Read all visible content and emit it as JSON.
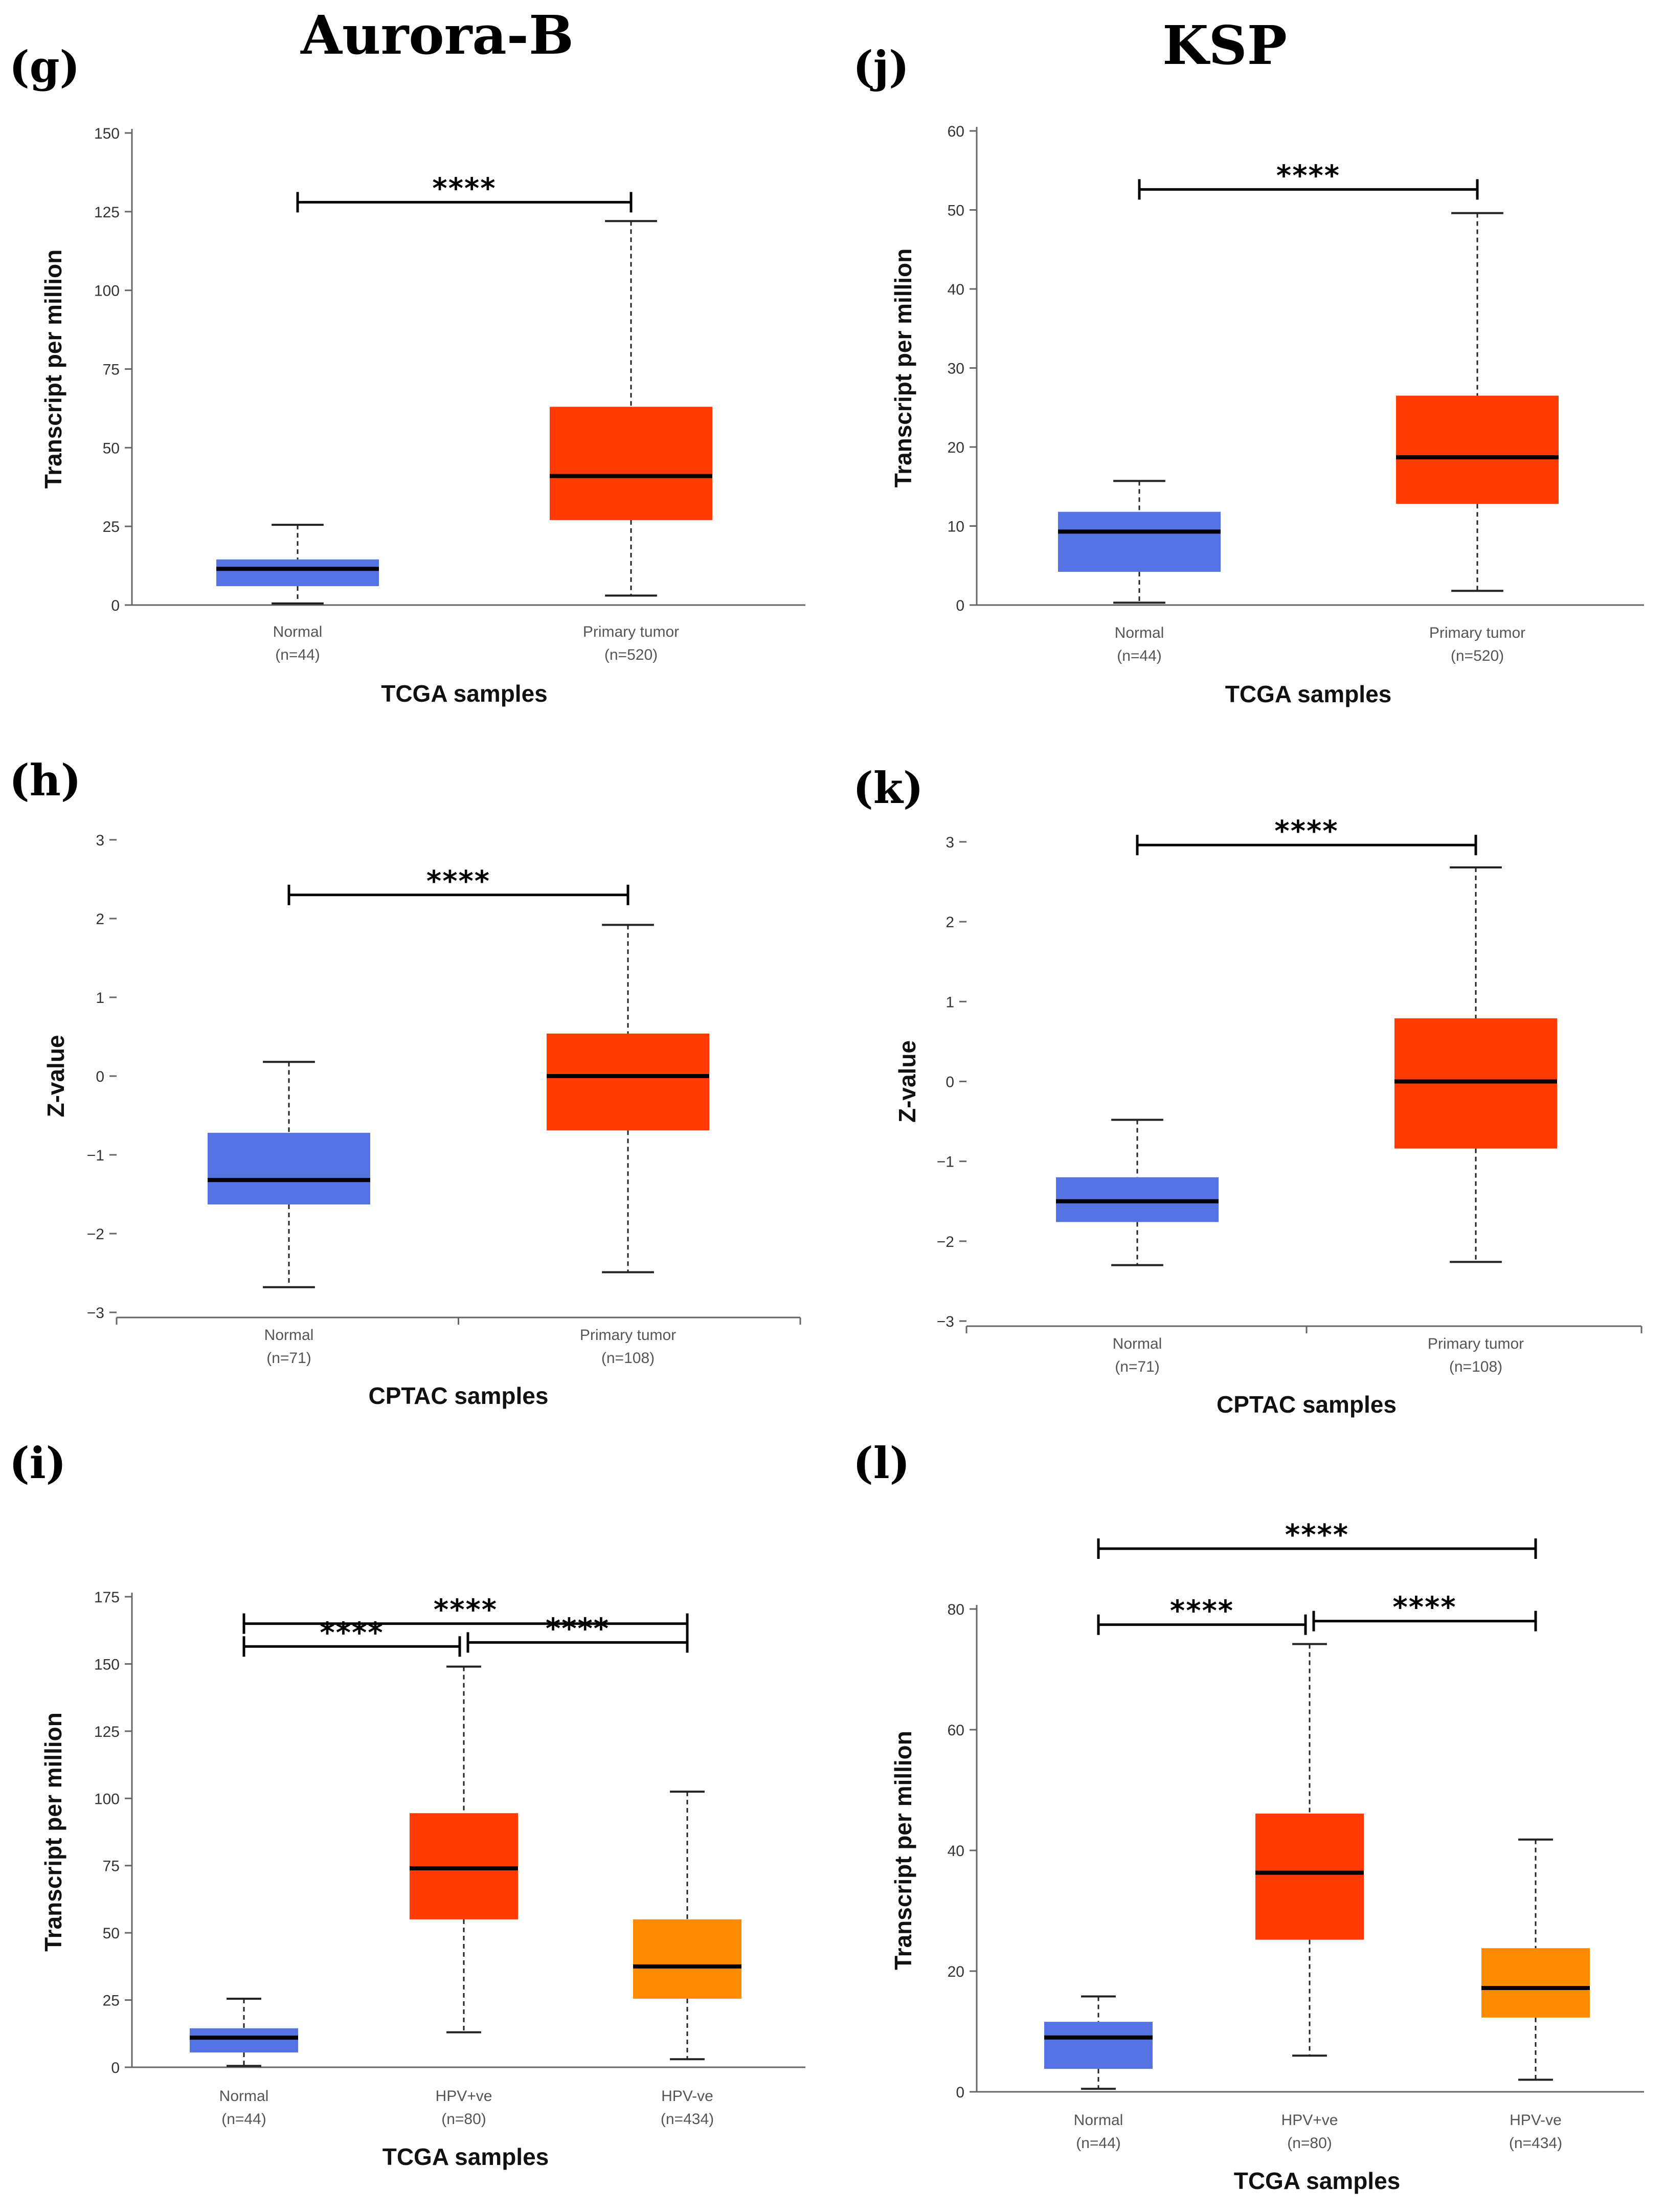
{
  "column_titles": [
    "Aurora-B",
    "KSP"
  ],
  "colors": {
    "normal": "#5573E2",
    "tumor": "#FF3A03",
    "hpv_neg": "#FF8C00"
  },
  "chart_data": [
    {
      "panel": "(g)",
      "type": "box",
      "ylabel": "Transcript per million",
      "xlabel": "TCGA samples",
      "ylim": [
        0,
        150
      ],
      "yticks": [
        "0",
        "25",
        "50",
        "75",
        "100",
        "125",
        "150"
      ],
      "groups": [
        {
          "name": "Normal",
          "n": "(n=44)",
          "color": "#5573E2",
          "min": 0.5,
          "q1": 6,
          "median": 11.5,
          "q3": 14.5,
          "max": 25.5
        },
        {
          "name": "Primary tumor",
          "n": "(n=520)",
          "color": "#FF3A03",
          "min": 3,
          "q1": 27,
          "median": 41,
          "q3": 63,
          "max": 122
        }
      ],
      "significance": [
        {
          "from": 0,
          "to": 1,
          "label": "****",
          "y": 128
        }
      ]
    },
    {
      "panel": "(h)",
      "type": "box",
      "ylabel": "Z-value",
      "xlabel": "CPTAC samples",
      "ylim": [
        -3,
        3
      ],
      "yticks": [
        "−3",
        "−2",
        "−1",
        "0",
        "1",
        "2",
        "3"
      ],
      "groups": [
        {
          "name": "Normal",
          "n": "(n=71)",
          "color": "#5573E2",
          "min": -2.68,
          "q1": -1.63,
          "median": -1.32,
          "q3": -0.72,
          "max": 0.18
        },
        {
          "name": "Primary tumor",
          "n": "(n=108)",
          "color": "#FF3A03",
          "min": -2.49,
          "q1": -0.69,
          "median": 0.0,
          "q3": 0.54,
          "max": 1.92
        }
      ],
      "significance": [
        {
          "from": 0,
          "to": 1,
          "label": "****",
          "y": 2.3
        }
      ]
    },
    {
      "panel": "(i)",
      "type": "box",
      "ylabel": "Transcript per million",
      "xlabel": "TCGA samples",
      "ylim": [
        0,
        175
      ],
      "yticks": [
        "0",
        "25",
        "50",
        "75",
        "100",
        "125",
        "150",
        "175"
      ],
      "groups": [
        {
          "name": "Normal",
          "n": "(n=44)",
          "color": "#5573E2",
          "min": 0.5,
          "q1": 5.5,
          "median": 11,
          "q3": 14.5,
          "max": 25.5
        },
        {
          "name": "HPV+ve",
          "n": "(n=80)",
          "color": "#FF3A03",
          "min": 13,
          "q1": 55,
          "median": 74,
          "q3": 94.5,
          "max": 149
        },
        {
          "name": "HPV-ve",
          "n": "(n=434)",
          "color": "#FF8C00",
          "min": 3,
          "q1": 25.5,
          "median": 37.5,
          "q3": 55,
          "max": 102.5
        }
      ],
      "significance": [
        {
          "from": 0,
          "to": 2,
          "label": "****",
          "y": 165
        },
        {
          "from": 0,
          "to": 1,
          "label": "****",
          "y": 156.5
        },
        {
          "from": 1,
          "to": 2,
          "label": "****",
          "y": 158
        }
      ]
    },
    {
      "panel": "(j)",
      "type": "box",
      "ylabel": "Transcript per million",
      "xlabel": "TCGA samples",
      "ylim": [
        0,
        60
      ],
      "yticks": [
        "0",
        "10",
        "20",
        "30",
        "40",
        "50",
        "60"
      ],
      "groups": [
        {
          "name": "Normal",
          "n": "(n=44)",
          "color": "#5573E2",
          "min": 0.3,
          "q1": 4.2,
          "median": 9.3,
          "q3": 11.8,
          "max": 15.7
        },
        {
          "name": "Primary tumor",
          "n": "(n=520)",
          "color": "#FF3A03",
          "min": 1.8,
          "q1": 12.8,
          "median": 18.7,
          "q3": 26.5,
          "max": 49.6
        }
      ],
      "significance": [
        {
          "from": 0,
          "to": 1,
          "label": "****",
          "y": 52.6
        }
      ]
    },
    {
      "panel": "(k)",
      "type": "box",
      "ylabel": "Z-value",
      "xlabel": "CPTAC samples",
      "ylim": [
        -3,
        3
      ],
      "yticks": [
        "−3",
        "−2",
        "−1",
        "0",
        "1",
        "2",
        "3"
      ],
      "groups": [
        {
          "name": "Normal",
          "n": "(n=71)",
          "color": "#5573E2",
          "min": -2.3,
          "q1": -1.76,
          "median": -1.5,
          "q3": -1.2,
          "max": -0.48
        },
        {
          "name": "Primary tumor",
          "n": "(n=108)",
          "color": "#FF3A03",
          "min": -2.26,
          "q1": -0.84,
          "median": 0.0,
          "q3": 0.79,
          "max": 2.68
        }
      ],
      "significance": [
        {
          "from": 0,
          "to": 1,
          "label": "****",
          "y": 2.96
        }
      ]
    },
    {
      "panel": "(l)",
      "type": "box",
      "ylabel": "Transcript per million",
      "xlabel": "TCGA samples",
      "ylim": [
        0,
        80
      ],
      "yticks": [
        "0",
        "20",
        "40",
        "60",
        "80"
      ],
      "groups": [
        {
          "name": "Normal",
          "n": "(n=44)",
          "color": "#5573E2",
          "min": 0.5,
          "q1": 3.8,
          "median": 9,
          "q3": 11.6,
          "max": 15.8
        },
        {
          "name": "HPV+ve",
          "n": "(n=80)",
          "color": "#FF3A03",
          "min": 6,
          "q1": 25.2,
          "median": 36.3,
          "q3": 46.1,
          "max": 74.2
        },
        {
          "name": "HPV-ve",
          "n": "(n=434)",
          "color": "#FF8C00",
          "min": 2,
          "q1": 12.3,
          "median": 17.2,
          "q3": 23.8,
          "max": 41.8
        }
      ],
      "significance": [
        {
          "from": 0,
          "to": 2,
          "label": "****",
          "y": 90
        },
        {
          "from": 0,
          "to": 1,
          "label": "****",
          "y": 77.4
        },
        {
          "from": 1,
          "to": 2,
          "label": "****",
          "y": 78
        }
      ]
    }
  ]
}
